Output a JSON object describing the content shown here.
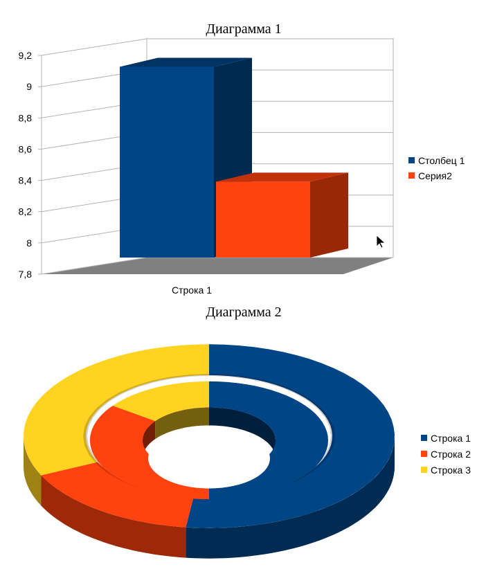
{
  "chart_data": [
    {
      "type": "bar",
      "view": "3d",
      "title": "Диаграмма 1",
      "xlabel": "",
      "ylabel": "",
      "categories": [
        "Строка 1"
      ],
      "series": [
        {
          "name": "Столбец 1",
          "values": [
            9.1
          ],
          "color": "#004586"
        },
        {
          "name": "Серия2",
          "values": [
            8.35
          ],
          "color": "#ff420e"
        }
      ],
      "ylim": [
        7.8,
        9.2
      ],
      "yticks": [
        "7,8",
        "8",
        "8,2",
        "8,4",
        "8,6",
        "8,8",
        "9",
        "9,2"
      ],
      "grid": true,
      "legend": "right"
    },
    {
      "type": "pie",
      "view": "3d-donut",
      "title": "Диаграмма 2",
      "categories": [
        "Строка 1",
        "Строка 2",
        "Строка 3"
      ],
      "colors": [
        "#004586",
        "#ff420e",
        "#ffd320"
      ],
      "series": [
        {
          "values": [
            52,
            16,
            32
          ]
        },
        {
          "values": [
            50,
            35,
            15
          ]
        }
      ],
      "legend": "right"
    }
  ]
}
